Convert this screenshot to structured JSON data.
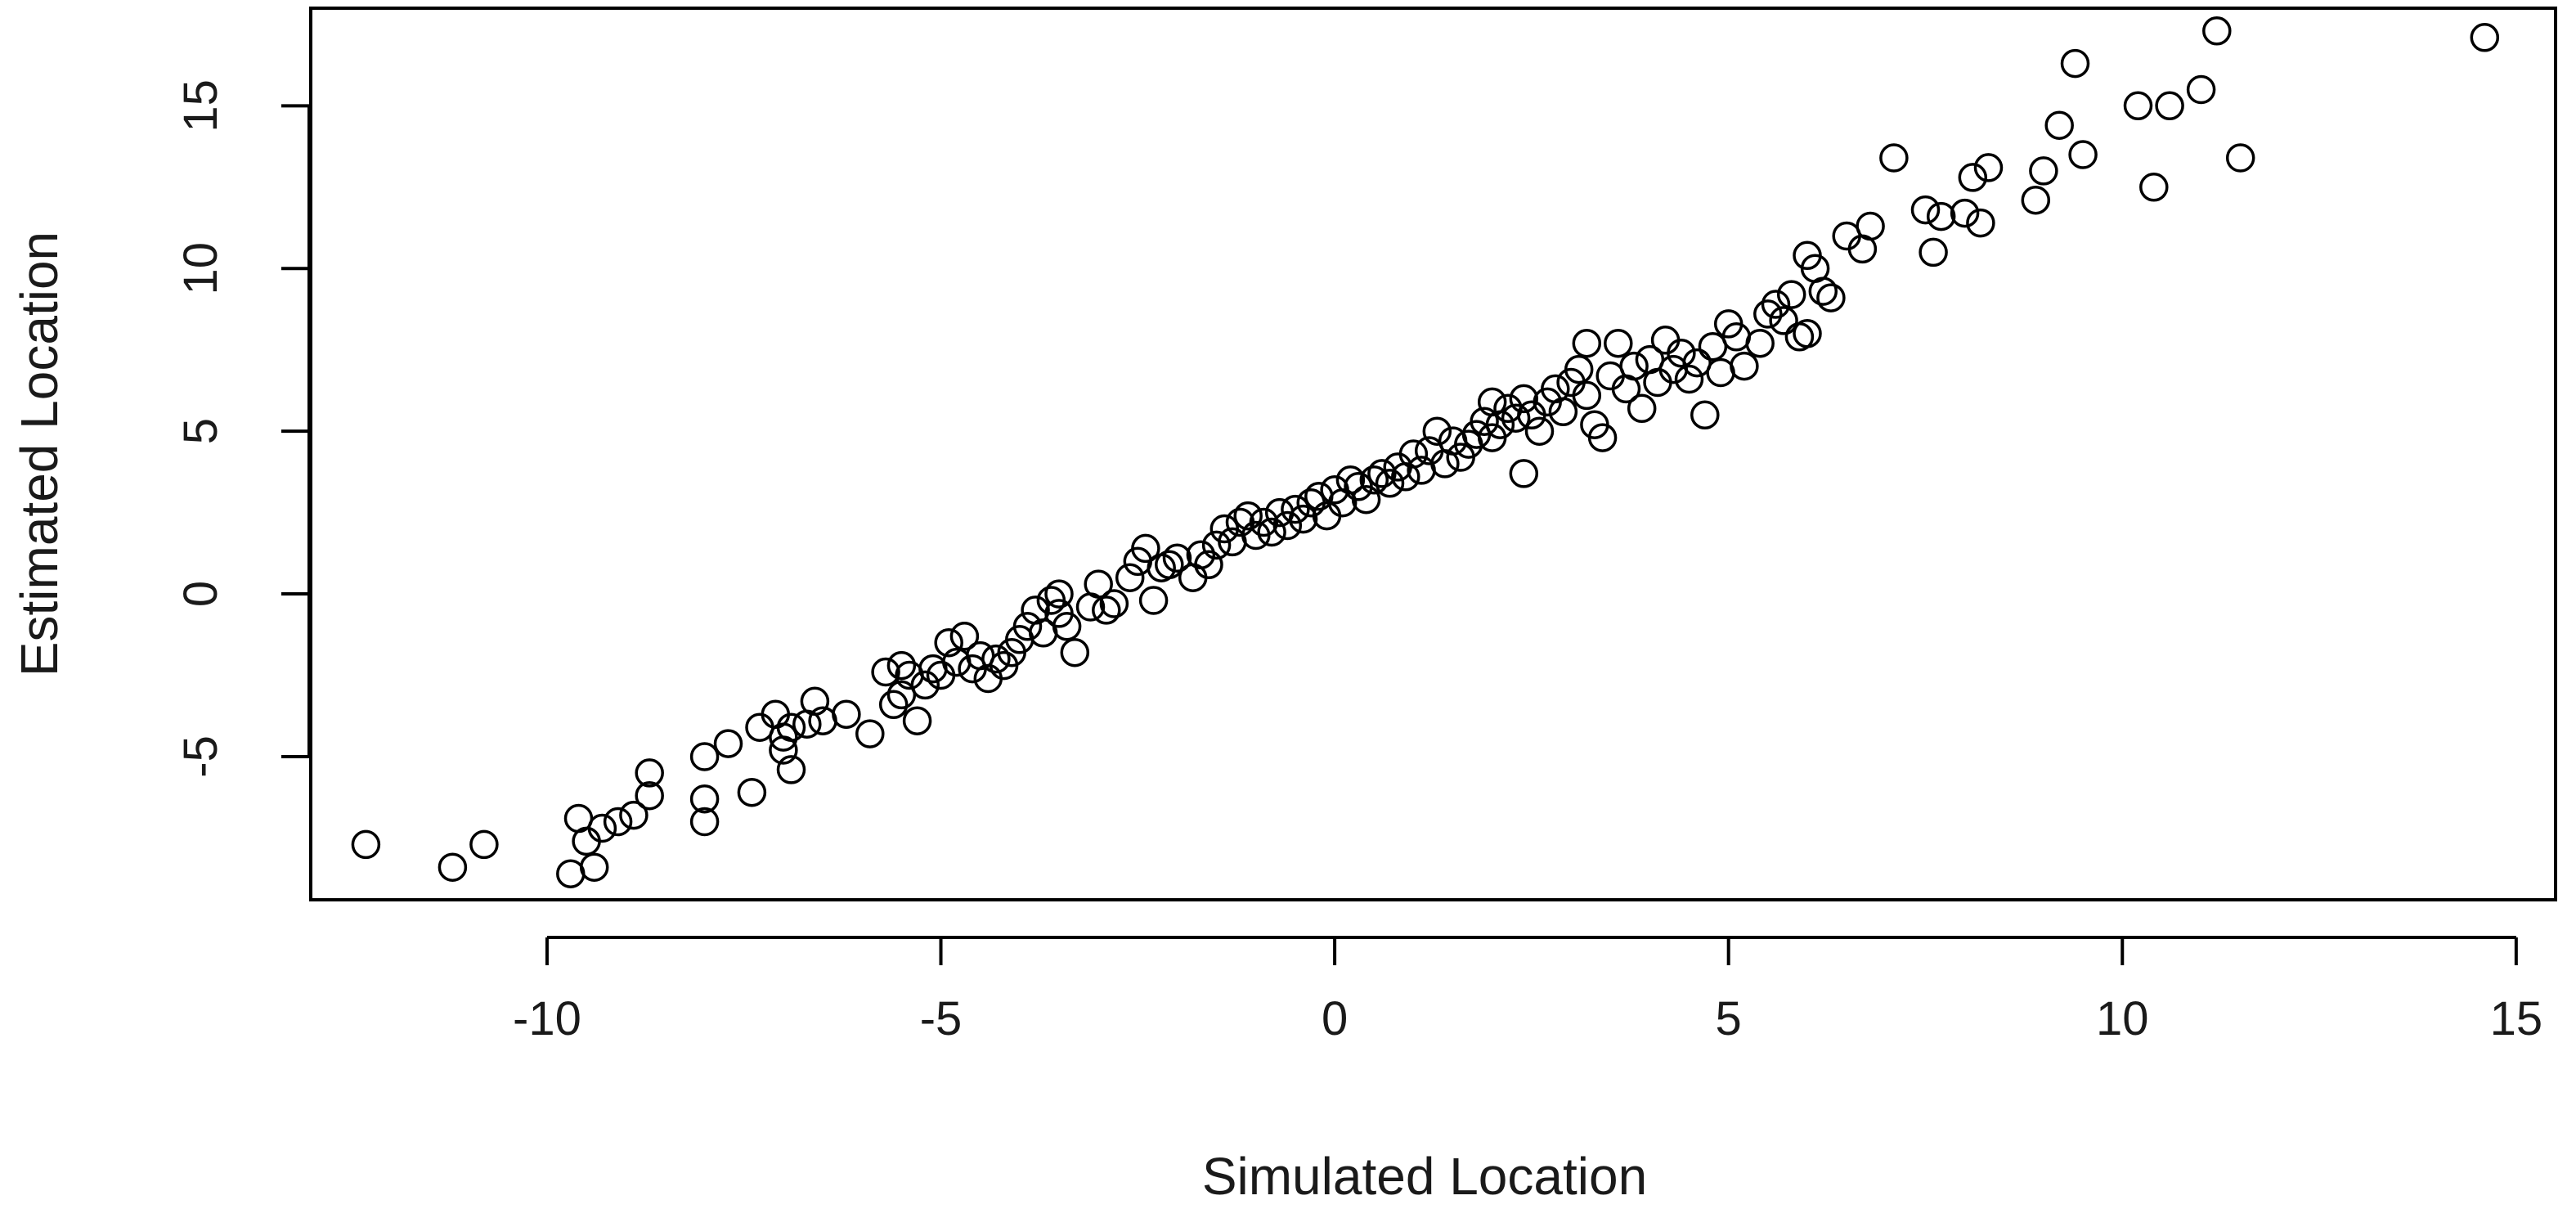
{
  "chart_data": {
    "type": "scatter",
    "title": "",
    "xlabel": "Simulated Location",
    "ylabel": "Estimated Location",
    "xlim": [
      -13.0,
      15.5
    ],
    "ylim": [
      -9.4,
      18.0
    ],
    "xticks": [
      -10,
      -5,
      0,
      5,
      10,
      15
    ],
    "yticks": [
      -5,
      0,
      5,
      10,
      15
    ],
    "grid": false,
    "legend": "none",
    "marker": "open-circle",
    "marker_color": "#000000",
    "points": [
      [
        -12.3,
        -7.7
      ],
      [
        -11.2,
        -8.4
      ],
      [
        -10.8,
        -7.7
      ],
      [
        -9.7,
        -8.6
      ],
      [
        -9.6,
        -6.9
      ],
      [
        -9.4,
        -8.4
      ],
      [
        -9.5,
        -7.6
      ],
      [
        -9.3,
        -7.2
      ],
      [
        -9.1,
        -7.0
      ],
      [
        -8.9,
        -6.8
      ],
      [
        -8.7,
        -6.2
      ],
      [
        -8.7,
        -5.5
      ],
      [
        -8.0,
        -6.3
      ],
      [
        -8.0,
        -7.0
      ],
      [
        -8.0,
        -5.0
      ],
      [
        -7.7,
        -4.6
      ],
      [
        -7.4,
        -6.1
      ],
      [
        -7.3,
        -4.1
      ],
      [
        -7.1,
        -3.7
      ],
      [
        -7.0,
        -4.4
      ],
      [
        -7.0,
        -4.8
      ],
      [
        -6.9,
        -5.4
      ],
      [
        -6.9,
        -4.1
      ],
      [
        -6.7,
        -4.0
      ],
      [
        -6.6,
        -3.3
      ],
      [
        -6.5,
        -3.9
      ],
      [
        -6.2,
        -3.7
      ],
      [
        -5.9,
        -4.3
      ],
      [
        -5.7,
        -2.4
      ],
      [
        -5.6,
        -3.4
      ],
      [
        -5.5,
        -2.2
      ],
      [
        -5.5,
        -3.1
      ],
      [
        -5.4,
        -2.5
      ],
      [
        -5.3,
        -3.9
      ],
      [
        -5.2,
        -2.8
      ],
      [
        -5.1,
        -2.3
      ],
      [
        -5.0,
        -2.5
      ],
      [
        -4.9,
        -1.5
      ],
      [
        -4.8,
        -2.1
      ],
      [
        -4.7,
        -1.3
      ],
      [
        -4.6,
        -2.3
      ],
      [
        -4.5,
        -1.9
      ],
      [
        -4.4,
        -2.6
      ],
      [
        -4.3,
        -2.0
      ],
      [
        -4.2,
        -2.2
      ],
      [
        -4.1,
        -1.8
      ],
      [
        -4.0,
        -1.4
      ],
      [
        -3.9,
        -1.0
      ],
      [
        -3.8,
        -0.5
      ],
      [
        -3.7,
        -1.2
      ],
      [
        -3.6,
        -0.2
      ],
      [
        -3.5,
        -0.6
      ],
      [
        -3.5,
        0.0
      ],
      [
        -3.4,
        -1.0
      ],
      [
        -3.3,
        -1.8
      ],
      [
        -3.1,
        -0.4
      ],
      [
        -3.0,
        0.3
      ],
      [
        -2.9,
        -0.5
      ],
      [
        -2.8,
        -0.3
      ],
      [
        -2.6,
        0.5
      ],
      [
        -2.5,
        1.0
      ],
      [
        -2.4,
        1.4
      ],
      [
        -2.3,
        -0.2
      ],
      [
        -2.2,
        0.8
      ],
      [
        -2.1,
        0.9
      ],
      [
        -2.0,
        1.1
      ],
      [
        -1.8,
        0.5
      ],
      [
        -1.7,
        1.2
      ],
      [
        -1.6,
        0.9
      ],
      [
        -1.5,
        1.5
      ],
      [
        -1.4,
        2.0
      ],
      [
        -1.3,
        1.6
      ],
      [
        -1.2,
        2.2
      ],
      [
        -1.1,
        2.4
      ],
      [
        -1.0,
        1.8
      ],
      [
        -0.9,
        2.2
      ],
      [
        -0.8,
        1.9
      ],
      [
        -0.7,
        2.5
      ],
      [
        -0.6,
        2.1
      ],
      [
        -0.5,
        2.6
      ],
      [
        -0.4,
        2.3
      ],
      [
        -0.3,
        2.8
      ],
      [
        -0.2,
        3.0
      ],
      [
        -0.1,
        2.4
      ],
      [
        0.0,
        3.2
      ],
      [
        0.1,
        2.8
      ],
      [
        0.2,
        3.5
      ],
      [
        0.3,
        3.3
      ],
      [
        0.4,
        2.9
      ],
      [
        0.5,
        3.5
      ],
      [
        0.6,
        3.7
      ],
      [
        0.7,
        3.4
      ],
      [
        0.8,
        3.9
      ],
      [
        0.9,
        3.6
      ],
      [
        1.0,
        4.3
      ],
      [
        1.1,
        3.8
      ],
      [
        1.2,
        4.4
      ],
      [
        1.3,
        5.0
      ],
      [
        1.4,
        4.0
      ],
      [
        1.5,
        4.7
      ],
      [
        1.6,
        4.2
      ],
      [
        1.7,
        4.6
      ],
      [
        1.8,
        4.9
      ],
      [
        1.9,
        5.3
      ],
      [
        2.0,
        4.8
      ],
      [
        2.0,
        5.9
      ],
      [
        2.1,
        5.2
      ],
      [
        2.2,
        5.7
      ],
      [
        2.3,
        5.4
      ],
      [
        2.4,
        6.0
      ],
      [
        2.4,
        3.7
      ],
      [
        2.5,
        5.5
      ],
      [
        2.6,
        5.0
      ],
      [
        2.7,
        5.9
      ],
      [
        2.8,
        6.3
      ],
      [
        2.9,
        5.6
      ],
      [
        3.0,
        6.5
      ],
      [
        3.1,
        6.9
      ],
      [
        3.2,
        6.1
      ],
      [
        3.2,
        7.7
      ],
      [
        3.3,
        5.2
      ],
      [
        3.4,
        4.8
      ],
      [
        3.5,
        6.7
      ],
      [
        3.6,
        7.7
      ],
      [
        3.7,
        6.3
      ],
      [
        3.8,
        7.0
      ],
      [
        3.9,
        5.7
      ],
      [
        4.0,
        7.2
      ],
      [
        4.1,
        6.5
      ],
      [
        4.2,
        7.8
      ],
      [
        4.3,
        6.9
      ],
      [
        4.4,
        7.4
      ],
      [
        4.5,
        6.6
      ],
      [
        4.6,
        7.1
      ],
      [
        4.7,
        5.5
      ],
      [
        4.8,
        7.6
      ],
      [
        4.9,
        6.8
      ],
      [
        5.0,
        8.3
      ],
      [
        5.1,
        7.9
      ],
      [
        5.2,
        7.0
      ],
      [
        5.4,
        7.7
      ],
      [
        5.5,
        8.6
      ],
      [
        5.6,
        8.9
      ],
      [
        5.7,
        8.4
      ],
      [
        5.8,
        9.2
      ],
      [
        5.9,
        7.9
      ],
      [
        6.0,
        8.0
      ],
      [
        6.0,
        10.4
      ],
      [
        6.1,
        10.0
      ],
      [
        6.2,
        9.3
      ],
      [
        6.3,
        9.1
      ],
      [
        6.5,
        11.0
      ],
      [
        6.7,
        10.6
      ],
      [
        6.8,
        11.3
      ],
      [
        7.1,
        13.4
      ],
      [
        7.5,
        11.8
      ],
      [
        7.6,
        10.5
      ],
      [
        7.7,
        11.6
      ],
      [
        8.0,
        11.7
      ],
      [
        8.1,
        12.8
      ],
      [
        8.2,
        11.4
      ],
      [
        8.3,
        13.1
      ],
      [
        8.9,
        12.1
      ],
      [
        9.0,
        13.0
      ],
      [
        9.2,
        14.4
      ],
      [
        9.4,
        16.3
      ],
      [
        9.5,
        13.5
      ],
      [
        10.2,
        15.0
      ],
      [
        10.4,
        12.5
      ],
      [
        10.6,
        15.0
      ],
      [
        11.0,
        15.5
      ],
      [
        11.2,
        17.3
      ],
      [
        11.5,
        13.4
      ],
      [
        14.6,
        17.1
      ]
    ]
  }
}
